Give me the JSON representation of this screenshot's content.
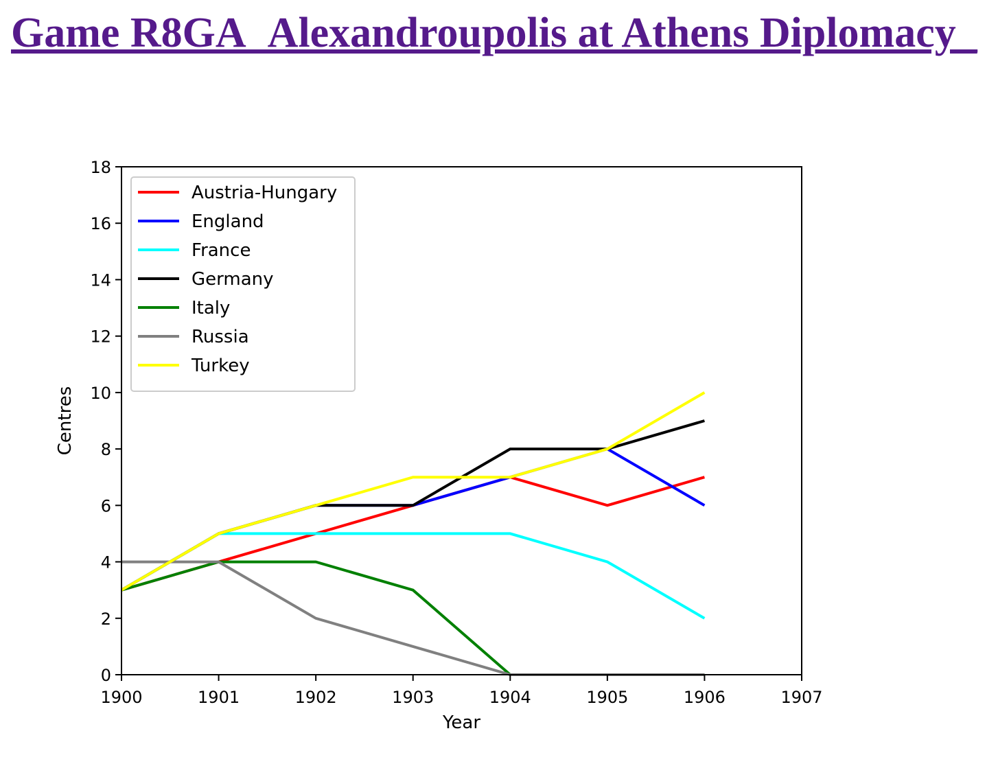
{
  "page": {
    "title": "Game R8GA_Alexandroupolis at Athens Diplomacy_"
  },
  "chart_data": {
    "type": "line",
    "title": "",
    "xlabel": "Year",
    "ylabel": "Centres",
    "xlim": [
      1900,
      1907
    ],
    "ylim": [
      0,
      18
    ],
    "x_ticks": [
      1900,
      1901,
      1902,
      1903,
      1904,
      1905,
      1906,
      1907
    ],
    "y_ticks": [
      0,
      2,
      4,
      6,
      8,
      10,
      12,
      14,
      16,
      18
    ],
    "grid": false,
    "legend_position": "top-left",
    "x": [
      1900,
      1901,
      1902,
      1903,
      1904,
      1905,
      1906
    ],
    "series": [
      {
        "name": "Austria-Hungary",
        "color": "#ff0000",
        "values": [
          3,
          4,
          5,
          6,
          7,
          6,
          7
        ]
      },
      {
        "name": "England",
        "color": "#0000ff",
        "values": [
          3,
          5,
          6,
          6,
          7,
          8,
          6
        ]
      },
      {
        "name": "France",
        "color": "#00ffff",
        "values": [
          3,
          5,
          5,
          5,
          5,
          4,
          2
        ]
      },
      {
        "name": "Germany",
        "color": "#000000",
        "values": [
          3,
          5,
          6,
          6,
          8,
          8,
          9
        ]
      },
      {
        "name": "Italy",
        "color": "#008000",
        "values": [
          3,
          4,
          4,
          3,
          0,
          0,
          0
        ]
      },
      {
        "name": "Russia",
        "color": "#808080",
        "values": [
          4,
          4,
          2,
          1,
          0,
          0,
          0
        ]
      },
      {
        "name": "Turkey",
        "color": "#ffff00",
        "values": [
          3,
          5,
          6,
          7,
          7,
          8,
          10
        ]
      }
    ]
  }
}
